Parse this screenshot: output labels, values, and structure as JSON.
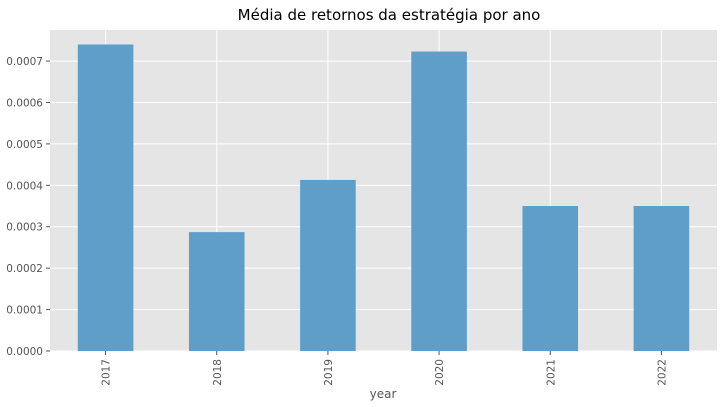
{
  "chart_data": {
    "type": "bar",
    "title": "Média de retornos da estratégia por ano",
    "xlabel": "year",
    "ylabel": "",
    "categories": [
      "2017",
      "2018",
      "2019",
      "2020",
      "2021",
      "2022"
    ],
    "values": [
      0.00074,
      0.000287,
      0.000413,
      0.000723,
      0.00035,
      0.00035
    ],
    "ylim": [
      0,
      0.000775
    ],
    "yticks": [
      0,
      0.0001,
      0.0002,
      0.0003,
      0.0004,
      0.0005,
      0.0006,
      0.0007
    ],
    "ytick_labels": [
      "0.0000",
      "0.0001",
      "0.0002",
      "0.0003",
      "0.0004",
      "0.0005",
      "0.0006",
      "0.0007"
    ],
    "grid": true,
    "style": "ggplot",
    "bar_color": "#5b9bc8",
    "plot_background": "#e5e5e5",
    "legend": "none"
  }
}
